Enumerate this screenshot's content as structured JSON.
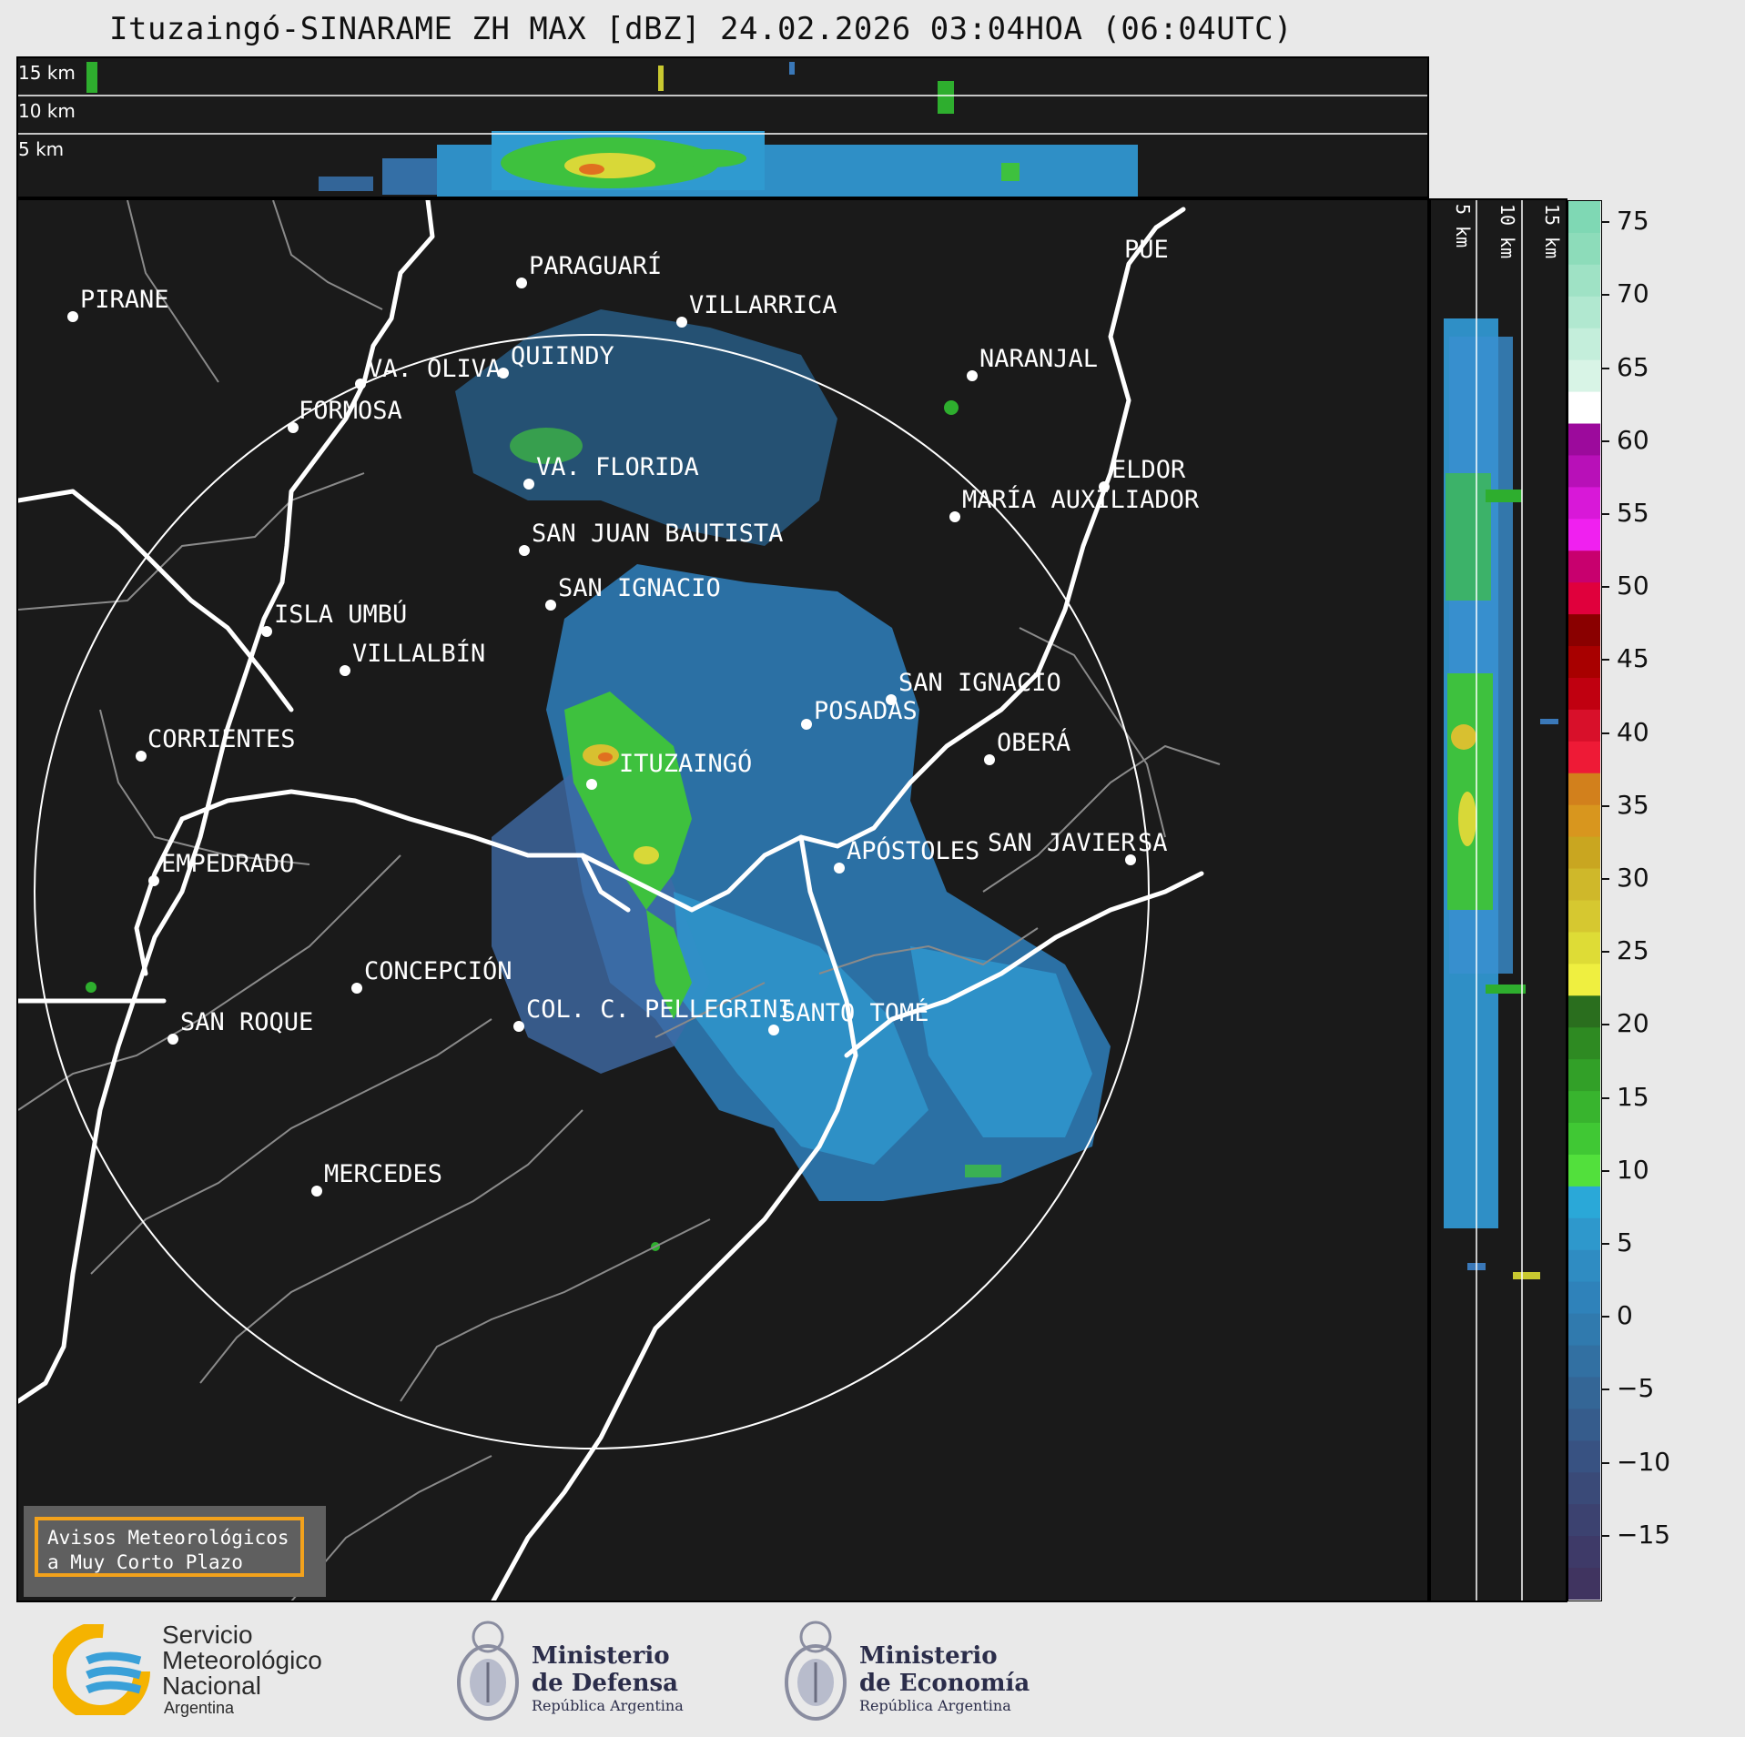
{
  "title": "Ituzaingó-SINARAME ZH MAX [dBZ] 24.02.2026 03:04HOA (06:04UTC)",
  "top_panel": {
    "height_labels": [
      "15 km",
      "10 km",
      "5 km"
    ]
  },
  "side_panel": {
    "height_labels": [
      "5 km",
      "10 km",
      "15 km"
    ]
  },
  "colorbar": {
    "ticks": [
      "75",
      "70",
      "65",
      "60",
      "55",
      "50",
      "45",
      "40",
      "35",
      "30",
      "25",
      "20",
      "15",
      "10",
      "5",
      "0",
      "−5",
      "−10",
      "−15"
    ],
    "range": [
      -19.5,
      76.5
    ]
  },
  "cities": [
    {
      "name": "PIRANE"
    },
    {
      "name": "PARAGUARÍ"
    },
    {
      "name": "VILLARRICA"
    },
    {
      "name": "QUIINDY"
    },
    {
      "name": "VA. OLIVA"
    },
    {
      "name": "NARANJAL"
    },
    {
      "name": "FORMOSA"
    },
    {
      "name": "VA. FLORIDA"
    },
    {
      "name": "ELDOR"
    },
    {
      "name": "MARÍA AUXILIADOR"
    },
    {
      "name": "SAN JUAN BAUTISTA"
    },
    {
      "name": "SAN IGNACIO"
    },
    {
      "name": "ISLA UMBÚ"
    },
    {
      "name": "VILLALBÍN"
    },
    {
      "name": "SAN IGNACIO"
    },
    {
      "name": "POSADAS"
    },
    {
      "name": "CORRIENTES"
    },
    {
      "name": "ITUZAINGÓ"
    },
    {
      "name": "OBERÁ"
    },
    {
      "name": "EMPEDRADO"
    },
    {
      "name": "APÓSTOLES"
    },
    {
      "name": "SAN JAVIER"
    },
    {
      "name": "SA"
    },
    {
      "name": "CONCEPCIÓN"
    },
    {
      "name": "SAN ROQUE"
    },
    {
      "name": "COL. C. PELLEGRINI"
    },
    {
      "name": "SANTO TOMÉ"
    },
    {
      "name": "MERCEDES"
    },
    {
      "name": "PUE"
    }
  ],
  "notice": {
    "line1": "Avisos Meteorológicos",
    "line2": "a Muy Corto Plazo"
  },
  "footer": {
    "smn": {
      "line1": "Servicio",
      "line2": "Meteorológico",
      "line3": "Nacional",
      "line4": "Argentina"
    },
    "defensa": {
      "line1": "Ministerio",
      "line2": "de Defensa",
      "line3": "República Argentina"
    },
    "economia": {
      "line1": "Ministerio",
      "line2": "de Economía",
      "line3": "República Argentina"
    }
  },
  "colors": {
    "background": "#1a1a1a",
    "page": "#e9e9e9",
    "notice_border": "#f3a21c",
    "smn_yellow": "#f5b300",
    "smn_blue": "#3aa0d8"
  }
}
